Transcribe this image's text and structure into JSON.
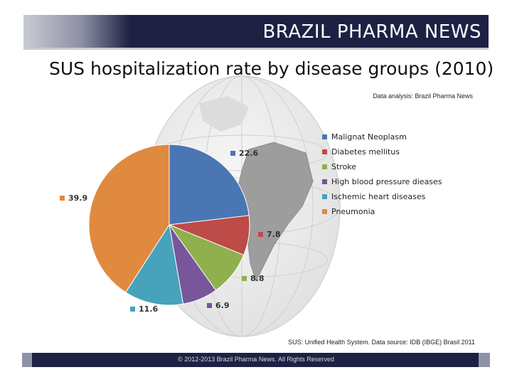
{
  "header": {
    "brand": "BRAZIL PHARMA NEWS"
  },
  "notes": {
    "analysis": "Data analysis: Brazil Pharma News",
    "source": "SUS: Unified Health System. Data source: IDB (IBGE) Brasil 2011"
  },
  "footer": {
    "copyright": "© 2012-2013  Brazil Pharma News. All Rights Reserved"
  },
  "chart_data": {
    "type": "pie",
    "title": "SUS hospitalization rate by disease groups (2010)",
    "categories": [
      "Malignat Neoplasm",
      "Diabetes mellitus",
      "Stroke",
      "High blood pressure dieases",
      "Ischemic heart diseases",
      "Pneumonia"
    ],
    "values": [
      22.6,
      7.8,
      8.8,
      6.9,
      11.6,
      39.9
    ],
    "data_labels": [
      "22.6",
      "7.8",
      "8.8",
      "6.9",
      "11.6",
      "39.9"
    ],
    "colors": [
      "#4a77b3",
      "#bd4b48",
      "#8fb04d",
      "#77569a",
      "#46a3bb",
      "#e08a40"
    ],
    "legend_position": "right"
  }
}
